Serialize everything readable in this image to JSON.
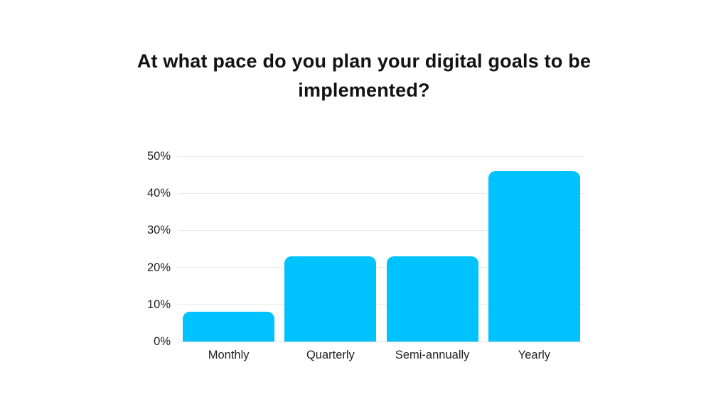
{
  "title": "At what pace do you plan your digital goals to be implemented?",
  "colors": {
    "background": "#FFFFFF",
    "bar": "#00C2FF",
    "gridline": "#EBEBEB",
    "baseline": "#DCDCDC",
    "title_text": "#121212",
    "axis_text": "#1F1F1F"
  },
  "chart_data": {
    "type": "bar",
    "title": "At what pace do you plan your digital goals to be implemented?",
    "categories": [
      "Monthly",
      "Quarterly",
      "Semi-annually",
      "Yearly"
    ],
    "values": [
      8,
      23,
      23,
      46
    ],
    "value_unit": "%",
    "xlabel": "",
    "ylabel": "",
    "ylim": [
      0,
      50
    ],
    "ytick_step": 10,
    "ytick_labels": [
      "0%",
      "10%",
      "20%",
      "30%",
      "40%",
      "50%"
    ],
    "grid": true,
    "legend": false,
    "bar_color": "#00C2FF"
  }
}
